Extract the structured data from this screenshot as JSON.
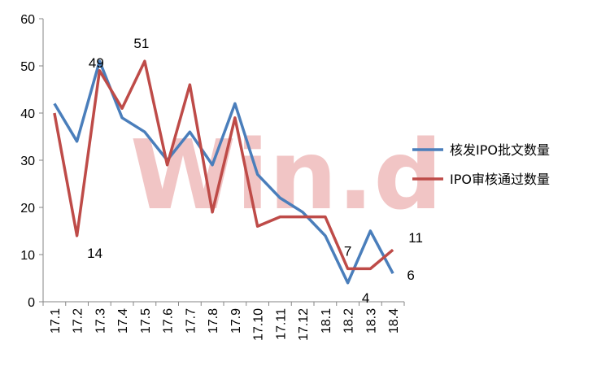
{
  "watermark": "Win.d",
  "chart_data": {
    "type": "line",
    "categories": [
      "17.1",
      "17.2",
      "17.3",
      "17.4",
      "17.5",
      "17.6",
      "17.7",
      "17.8",
      "17.9",
      "17.10",
      "17.11",
      "17.12",
      "18.1",
      "18.2",
      "18.3",
      "18.4"
    ],
    "ylim": [
      0,
      60
    ],
    "yticks": [
      0,
      10,
      20,
      30,
      40,
      50,
      60
    ],
    "grid": false,
    "legend_position": "right",
    "series": [
      {
        "name": "核发IPO批文数量",
        "color": "#4a7ebb",
        "values": [
          42,
          34,
          51,
          39,
          36,
          30,
          36,
          29,
          42,
          27,
          22,
          19,
          14,
          4,
          15,
          6
        ]
      },
      {
        "name": "IPO审核通过数量",
        "color": "#be4b48",
        "values": [
          40,
          14,
          49,
          41,
          51,
          29,
          46,
          19,
          39,
          16,
          18,
          18,
          18,
          7,
          7,
          11
        ]
      }
    ],
    "data_labels": [
      {
        "series": 1,
        "index": 1,
        "text": "14"
      },
      {
        "series": 1,
        "index": 2,
        "text": "49"
      },
      {
        "series": 1,
        "index": 4,
        "text": "51"
      },
      {
        "series": 1,
        "index": 13,
        "text": "7"
      },
      {
        "series": 0,
        "index": 13,
        "text": "4"
      },
      {
        "series": 1,
        "index": 15,
        "text": "11"
      },
      {
        "series": 0,
        "index": 15,
        "text": "6"
      }
    ]
  }
}
